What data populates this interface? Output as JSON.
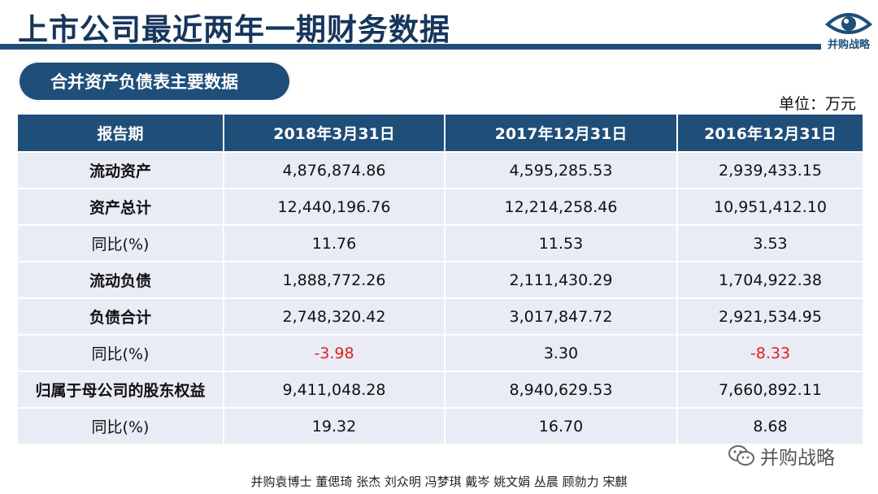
{
  "title": "上市公司最近两年一期财务数据",
  "logo": {
    "text": "并购战略"
  },
  "section_label": "合并资产负债表主要数据",
  "unit": "单位：万元",
  "table": {
    "headers": [
      "报告期",
      "2018年3月31日",
      "2017年12月31日",
      "2016年12月31日"
    ],
    "rows": [
      {
        "label": "流动资产",
        "bold": true,
        "values": [
          "4,876,874.86",
          "4,595,285.53",
          "2,939,433.15"
        ]
      },
      {
        "label": "资产总计",
        "bold": true,
        "values": [
          "12,440,196.76",
          "12,214,258.46",
          "10,951,412.10"
        ]
      },
      {
        "label": "同比(%)",
        "bold": false,
        "values": [
          "11.76",
          "11.53",
          "3.53"
        ]
      },
      {
        "label": "流动负债",
        "bold": true,
        "values": [
          "1,888,772.26",
          "2,111,430.29",
          "1,704,922.38"
        ]
      },
      {
        "label": "负债合计",
        "bold": true,
        "values": [
          "2,748,320.42",
          "3,017,847.72",
          "2,921,534.95"
        ]
      },
      {
        "label": "同比(%)",
        "bold": false,
        "values": [
          "-3.98",
          "3.30",
          "-8.33"
        ]
      },
      {
        "label": "归属于母公司的股东权益",
        "bold": true,
        "values": [
          "9,411,048.28",
          "8,940,629.53",
          "7,660,892.11"
        ]
      },
      {
        "label": "同比(%)",
        "bold": false,
        "values": [
          "19.32",
          "16.70",
          "8.68"
        ]
      }
    ]
  },
  "negative_color": "#e02020",
  "accent_color": "#1f4e79",
  "watermark": {
    "icon": "wechat-icon",
    "text": "并购战略"
  },
  "footer": "并购袁博士 董偲琦 张杰 刘众明 冯梦琪 戴岑 姚文娟  丛晨 顾勍力 宋麒"
}
